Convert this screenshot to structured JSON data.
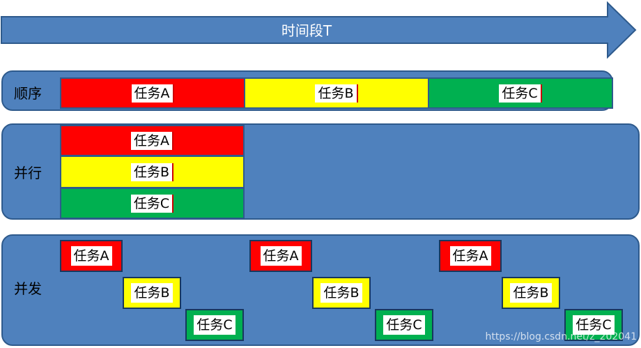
{
  "timeline": {
    "title": "时间段T"
  },
  "rows": {
    "sequential": {
      "label": "顺序"
    },
    "parallel": {
      "label": "并行"
    },
    "concurrent": {
      "label": "并发"
    }
  },
  "tasks": {
    "a": "任务A",
    "b": "任务B",
    "c": "任务C"
  },
  "colors": {
    "task_a": "#ff0000",
    "task_b": "#ffff00",
    "task_c": "#00b050",
    "panel": "#4f81bd"
  },
  "watermark": "https://blog.csdn.net/z_202041"
}
